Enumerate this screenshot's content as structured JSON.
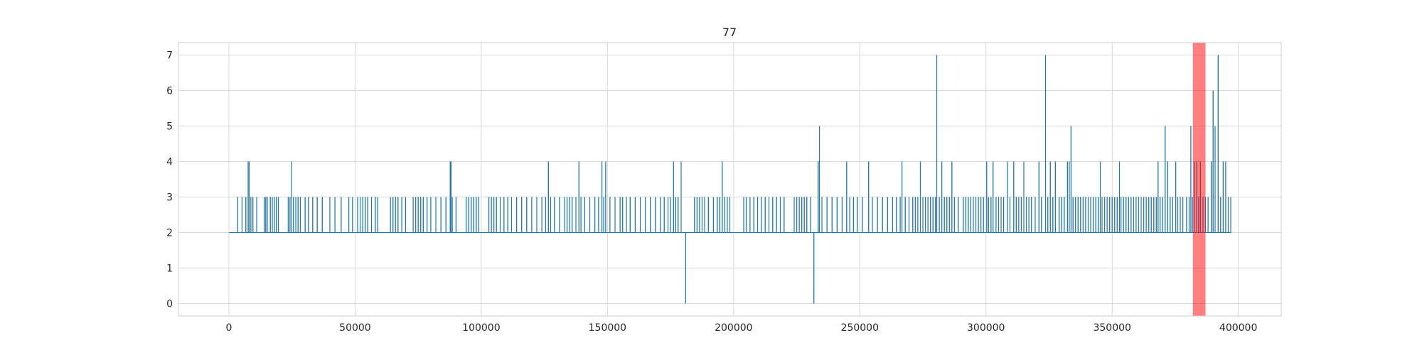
{
  "chart_data": {
    "type": "line",
    "title": "77",
    "xlabel": "",
    "ylabel": "",
    "xlim": [
      -20000,
      417000
    ],
    "ylim": [
      -0.35,
      7.35
    ],
    "xticks": [
      0,
      50000,
      100000,
      150000,
      200000,
      250000,
      300000,
      350000,
      400000
    ],
    "xtick_labels": [
      "0",
      "50000",
      "100000",
      "150000",
      "200000",
      "250000",
      "300000",
      "350000",
      "400000"
    ],
    "yticks": [
      0,
      1,
      2,
      3,
      4,
      5,
      6,
      7
    ],
    "ytick_labels": [
      "0",
      "1",
      "2",
      "3",
      "4",
      "5",
      "6",
      "7"
    ],
    "grid": true,
    "series_color": "#1f77b4",
    "baseline_value": 2,
    "x_range": [
      0,
      397000
    ],
    "spikes": [
      [
        3500,
        3
      ],
      [
        5200,
        3
      ],
      [
        6700,
        3
      ],
      [
        7600,
        4
      ],
      [
        8000,
        4
      ],
      [
        8700,
        3
      ],
      [
        9500,
        3
      ],
      [
        11000,
        3
      ],
      [
        14000,
        3
      ],
      [
        14600,
        3
      ],
      [
        15200,
        3
      ],
      [
        16400,
        3
      ],
      [
        17200,
        3
      ],
      [
        18000,
        3
      ],
      [
        18800,
        3
      ],
      [
        19600,
        3
      ],
      [
        23500,
        3
      ],
      [
        24200,
        3
      ],
      [
        24800,
        4
      ],
      [
        25600,
        3
      ],
      [
        26500,
        3
      ],
      [
        27400,
        3
      ],
      [
        28300,
        3
      ],
      [
        30200,
        3
      ],
      [
        31500,
        3
      ],
      [
        33200,
        3
      ],
      [
        35000,
        3
      ],
      [
        37000,
        3
      ],
      [
        40000,
        3
      ],
      [
        42000,
        3
      ],
      [
        44500,
        3
      ],
      [
        47500,
        3
      ],
      [
        49000,
        3
      ],
      [
        51000,
        3
      ],
      [
        52000,
        3
      ],
      [
        53000,
        3
      ],
      [
        54000,
        3
      ],
      [
        55000,
        3
      ],
      [
        56500,
        3
      ],
      [
        58000,
        3
      ],
      [
        59000,
        3
      ],
      [
        64000,
        3
      ],
      [
        65000,
        3
      ],
      [
        66000,
        3
      ],
      [
        67000,
        3
      ],
      [
        68500,
        3
      ],
      [
        70000,
        3
      ],
      [
        73000,
        3
      ],
      [
        74000,
        3
      ],
      [
        75000,
        3
      ],
      [
        76000,
        3
      ],
      [
        77000,
        3
      ],
      [
        78500,
        3
      ],
      [
        80000,
        3
      ],
      [
        82000,
        3
      ],
      [
        84000,
        3
      ],
      [
        86000,
        3
      ],
      [
        87700,
        4
      ],
      [
        88000,
        4
      ],
      [
        88500,
        3
      ],
      [
        90000,
        3
      ],
      [
        94000,
        3
      ],
      [
        95000,
        3
      ],
      [
        96000,
        3
      ],
      [
        97000,
        3
      ],
      [
        98000,
        3
      ],
      [
        99000,
        3
      ],
      [
        103000,
        3
      ],
      [
        104000,
        3
      ],
      [
        105000,
        3
      ],
      [
        106000,
        3
      ],
      [
        107500,
        3
      ],
      [
        109000,
        3
      ],
      [
        110500,
        3
      ],
      [
        112000,
        3
      ],
      [
        114000,
        3
      ],
      [
        116000,
        3
      ],
      [
        118000,
        3
      ],
      [
        120000,
        3
      ],
      [
        122000,
        3
      ],
      [
        124000,
        3
      ],
      [
        125500,
        3
      ],
      [
        126600,
        4
      ],
      [
        127500,
        3
      ],
      [
        129000,
        3
      ],
      [
        131000,
        3
      ],
      [
        133000,
        3
      ],
      [
        134000,
        3
      ],
      [
        135000,
        3
      ],
      [
        136000,
        3
      ],
      [
        137500,
        3
      ],
      [
        138700,
        4
      ],
      [
        139500,
        3
      ],
      [
        141000,
        3
      ],
      [
        143000,
        3
      ],
      [
        145000,
        3
      ],
      [
        146500,
        3
      ],
      [
        147800,
        4
      ],
      [
        148500,
        3
      ],
      [
        149300,
        4
      ],
      [
        151000,
        3
      ],
      [
        153000,
        3
      ],
      [
        155000,
        3
      ],
      [
        156000,
        3
      ],
      [
        157500,
        3
      ],
      [
        159000,
        3
      ],
      [
        161000,
        3
      ],
      [
        163000,
        3
      ],
      [
        165000,
        3
      ],
      [
        167000,
        3
      ],
      [
        169000,
        3
      ],
      [
        171000,
        3
      ],
      [
        172500,
        3
      ],
      [
        174000,
        3
      ],
      [
        175000,
        3
      ],
      [
        176200,
        4
      ],
      [
        177000,
        3
      ],
      [
        178000,
        3
      ],
      [
        179200,
        4
      ],
      [
        181000,
        0
      ],
      [
        184500,
        3
      ],
      [
        185500,
        3
      ],
      [
        186500,
        3
      ],
      [
        187500,
        3
      ],
      [
        188500,
        3
      ],
      [
        190000,
        3
      ],
      [
        192000,
        3
      ],
      [
        193500,
        3
      ],
      [
        194500,
        3
      ],
      [
        195500,
        4
      ],
      [
        196500,
        3
      ],
      [
        197500,
        3
      ],
      [
        198500,
        3
      ],
      [
        204000,
        3
      ],
      [
        205000,
        3
      ],
      [
        206500,
        3
      ],
      [
        208000,
        3
      ],
      [
        209500,
        3
      ],
      [
        211000,
        3
      ],
      [
        212500,
        3
      ],
      [
        214000,
        3
      ],
      [
        215500,
        3
      ],
      [
        217000,
        3
      ],
      [
        218500,
        3
      ],
      [
        220000,
        3
      ],
      [
        224000,
        3
      ],
      [
        225000,
        3
      ],
      [
        226000,
        3
      ],
      [
        227000,
        3
      ],
      [
        228000,
        3
      ],
      [
        229000,
        3
      ],
      [
        230500,
        3
      ],
      [
        231800,
        0
      ],
      [
        233500,
        4
      ],
      [
        234000,
        5
      ],
      [
        235000,
        3
      ],
      [
        237000,
        3
      ],
      [
        239000,
        3
      ],
      [
        241000,
        3
      ],
      [
        243000,
        3
      ],
      [
        244800,
        4
      ],
      [
        246000,
        3
      ],
      [
        247500,
        3
      ],
      [
        249000,
        3
      ],
      [
        251000,
        3
      ],
      [
        253500,
        4
      ],
      [
        255000,
        3
      ],
      [
        257000,
        3
      ],
      [
        259000,
        3
      ],
      [
        261000,
        3
      ],
      [
        263000,
        3
      ],
      [
        264500,
        3
      ],
      [
        266000,
        3
      ],
      [
        266700,
        4
      ],
      [
        268000,
        3
      ],
      [
        269500,
        3
      ],
      [
        271000,
        3
      ],
      [
        272000,
        3
      ],
      [
        273000,
        3
      ],
      [
        274000,
        4
      ],
      [
        275000,
        3
      ],
      [
        276000,
        3
      ],
      [
        277000,
        3
      ],
      [
        278000,
        3
      ],
      [
        279000,
        3
      ],
      [
        280000,
        3
      ],
      [
        280500,
        7
      ],
      [
        281500,
        3
      ],
      [
        282500,
        4
      ],
      [
        283500,
        3
      ],
      [
        284500,
        3
      ],
      [
        285500,
        3
      ],
      [
        286500,
        4
      ],
      [
        287500,
        3
      ],
      [
        289000,
        3
      ],
      [
        291000,
        3
      ],
      [
        292000,
        3
      ],
      [
        293000,
        3
      ],
      [
        294000,
        3
      ],
      [
        295000,
        3
      ],
      [
        296000,
        3
      ],
      [
        297000,
        3
      ],
      [
        298000,
        3
      ],
      [
        299000,
        3
      ],
      [
        300300,
        4
      ],
      [
        301000,
        3
      ],
      [
        302000,
        3
      ],
      [
        302800,
        4
      ],
      [
        304000,
        3
      ],
      [
        305000,
        3
      ],
      [
        306000,
        3
      ],
      [
        307000,
        3
      ],
      [
        308500,
        4
      ],
      [
        309500,
        3
      ],
      [
        311000,
        4
      ],
      [
        312000,
        3
      ],
      [
        313000,
        3
      ],
      [
        314000,
        3
      ],
      [
        315000,
        4
      ],
      [
        316000,
        3
      ],
      [
        317000,
        3
      ],
      [
        318000,
        3
      ],
      [
        319500,
        3
      ],
      [
        321000,
        4
      ],
      [
        322000,
        3
      ],
      [
        323600,
        7
      ],
      [
        324500,
        3
      ],
      [
        325500,
        4
      ],
      [
        326500,
        3
      ],
      [
        327500,
        4
      ],
      [
        329000,
        3
      ],
      [
        330000,
        3
      ],
      [
        331000,
        3
      ],
      [
        332300,
        4
      ],
      [
        333000,
        4
      ],
      [
        333700,
        5
      ],
      [
        334500,
        3
      ],
      [
        335500,
        3
      ],
      [
        336500,
        3
      ],
      [
        337500,
        3
      ],
      [
        338500,
        3
      ],
      [
        339500,
        3
      ],
      [
        340500,
        3
      ],
      [
        341500,
        3
      ],
      [
        342500,
        3
      ],
      [
        343500,
        3
      ],
      [
        344500,
        3
      ],
      [
        345300,
        4
      ],
      [
        346000,
        3
      ],
      [
        347000,
        3
      ],
      [
        348000,
        3
      ],
      [
        349000,
        3
      ],
      [
        350000,
        3
      ],
      [
        351000,
        3
      ],
      [
        352000,
        3
      ],
      [
        352900,
        4
      ],
      [
        353500,
        3
      ],
      [
        354500,
        3
      ],
      [
        355500,
        3
      ],
      [
        356500,
        3
      ],
      [
        357500,
        3
      ],
      [
        358500,
        3
      ],
      [
        359500,
        3
      ],
      [
        360500,
        3
      ],
      [
        361500,
        3
      ],
      [
        362500,
        3
      ],
      [
        363500,
        3
      ],
      [
        364500,
        3
      ],
      [
        365500,
        3
      ],
      [
        366500,
        3
      ],
      [
        367500,
        3
      ],
      [
        368200,
        4
      ],
      [
        369000,
        3
      ],
      [
        370000,
        3
      ],
      [
        371000,
        5
      ],
      [
        372000,
        4
      ],
      [
        373000,
        3
      ],
      [
        374000,
        3
      ],
      [
        375200,
        4
      ],
      [
        376000,
        3
      ],
      [
        377000,
        3
      ],
      [
        378000,
        3
      ],
      [
        379500,
        3
      ],
      [
        380500,
        3
      ],
      [
        381200,
        5
      ],
      [
        381800,
        3
      ],
      [
        382500,
        4
      ],
      [
        383500,
        4
      ],
      [
        384300,
        3
      ],
      [
        385000,
        4
      ],
      [
        386000,
        3
      ],
      [
        387000,
        3
      ],
      [
        388000,
        3
      ],
      [
        389300,
        4
      ],
      [
        390000,
        6
      ],
      [
        390800,
        5
      ],
      [
        392000,
        7
      ],
      [
        393000,
        3
      ],
      [
        394000,
        4
      ],
      [
        395000,
        4
      ],
      [
        396000,
        3
      ],
      [
        397000,
        3
      ]
    ],
    "highlight": {
      "x_start": 382000,
      "x_end": 387000,
      "color": "#ff0000",
      "opacity": 0.5
    }
  }
}
